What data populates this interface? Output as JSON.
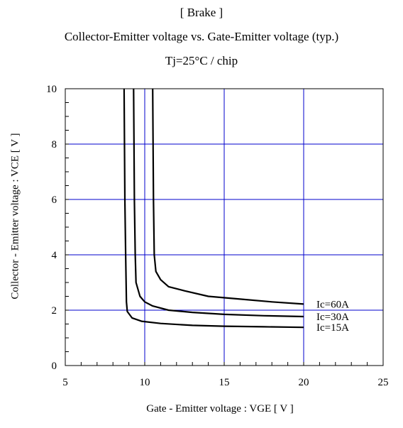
{
  "chart_data": {
    "type": "line",
    "title": "[ Brake ]",
    "subtitle": "Collector-Emitter voltage  vs. Gate-Emitter voltage (typ.)",
    "condition": "Tj=25°C / chip",
    "xlabel": "Gate - Emitter voltage  :  VGE  [ V ]",
    "ylabel": "Collector - Emitter voltage  :  VCE  [ V ]",
    "xlim": [
      5,
      25
    ],
    "ylim": [
      0,
      10
    ],
    "x_ticks": [
      5,
      10,
      15,
      20,
      25
    ],
    "y_ticks": [
      0,
      2,
      4,
      6,
      8,
      10
    ],
    "grid": true,
    "series": [
      {
        "name": "Ic=60A",
        "points": [
          [
            10.5,
            10
          ],
          [
            10.55,
            6
          ],
          [
            10.6,
            4
          ],
          [
            10.7,
            3.4
          ],
          [
            11.0,
            3.1
          ],
          [
            11.5,
            2.85
          ],
          [
            12.5,
            2.7
          ],
          [
            14.0,
            2.5
          ],
          [
            16.0,
            2.4
          ],
          [
            18.0,
            2.3
          ],
          [
            20.0,
            2.22
          ]
        ]
      },
      {
        "name": "Ic=30A",
        "points": [
          [
            9.3,
            10
          ],
          [
            9.35,
            6
          ],
          [
            9.4,
            4
          ],
          [
            9.45,
            3.0
          ],
          [
            9.7,
            2.5
          ],
          [
            10.0,
            2.3
          ],
          [
            10.5,
            2.15
          ],
          [
            11.5,
            2.0
          ],
          [
            13.0,
            1.92
          ],
          [
            15.0,
            1.85
          ],
          [
            17.5,
            1.8
          ],
          [
            20.0,
            1.77
          ]
        ]
      },
      {
        "name": "Ic=15A",
        "points": [
          [
            8.7,
            10
          ],
          [
            8.75,
            6
          ],
          [
            8.8,
            4
          ],
          [
            8.85,
            2.3
          ],
          [
            8.9,
            1.95
          ],
          [
            9.2,
            1.72
          ],
          [
            9.8,
            1.6
          ],
          [
            11.0,
            1.52
          ],
          [
            13.0,
            1.45
          ],
          [
            15.0,
            1.42
          ],
          [
            17.5,
            1.4
          ],
          [
            20.0,
            1.38
          ]
        ]
      }
    ]
  }
}
